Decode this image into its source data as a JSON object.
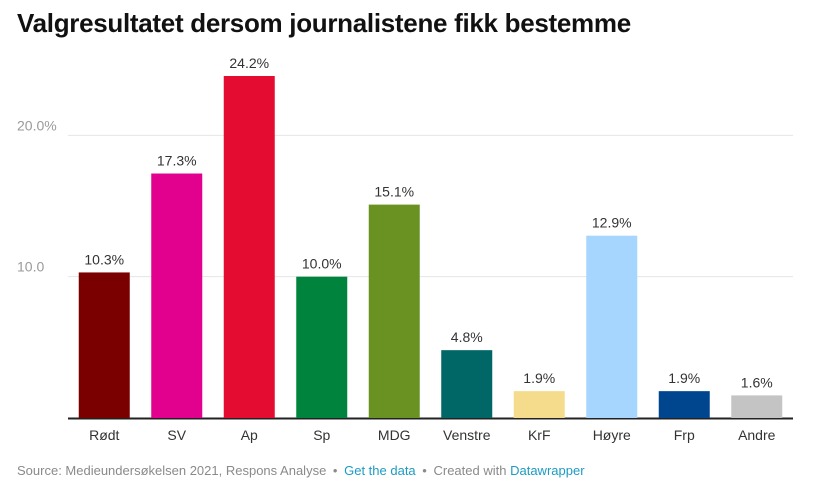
{
  "header": {
    "title": "Valgresultatet dersom journalistene fikk bestemme"
  },
  "chart_data": {
    "type": "bar",
    "title": "Valgresultatet dersom journalistene fikk bestemme",
    "categories": [
      "Rødt",
      "SV",
      "Ap",
      "Sp",
      "MDG",
      "Venstre",
      "KrF",
      "Høyre",
      "Frp",
      "Andre"
    ],
    "values": [
      10.3,
      17.3,
      24.2,
      10.0,
      15.1,
      4.8,
      1.9,
      12.9,
      1.9,
      1.6
    ],
    "value_labels": [
      "10.3%",
      "17.3%",
      "24.2%",
      "10.0%",
      "15.1%",
      "4.8%",
      "1.9%",
      "12.9%",
      "1.9%",
      "1.6%"
    ],
    "colors": [
      "#7a0000",
      "#e2008e",
      "#e40c30",
      "#00843d",
      "#6a9223",
      "#006666",
      "#f4dc8c",
      "#a6d5fe",
      "#00468f",
      "#c4c4c4"
    ],
    "yticks": [
      10,
      20
    ],
    "ytick_labels": [
      "10.0",
      "20.0%"
    ],
    "ylim": [
      0,
      24.2
    ],
    "xlabel": "",
    "ylabel": "",
    "grid": true,
    "legend": "none"
  },
  "footer": {
    "source": "Source: Medieundersøkelsen 2021, Respons Analyse",
    "sep1": "•",
    "get_data": "Get the data",
    "sep2": "•",
    "created": "Created with",
    "tool": "Datawrapper"
  }
}
